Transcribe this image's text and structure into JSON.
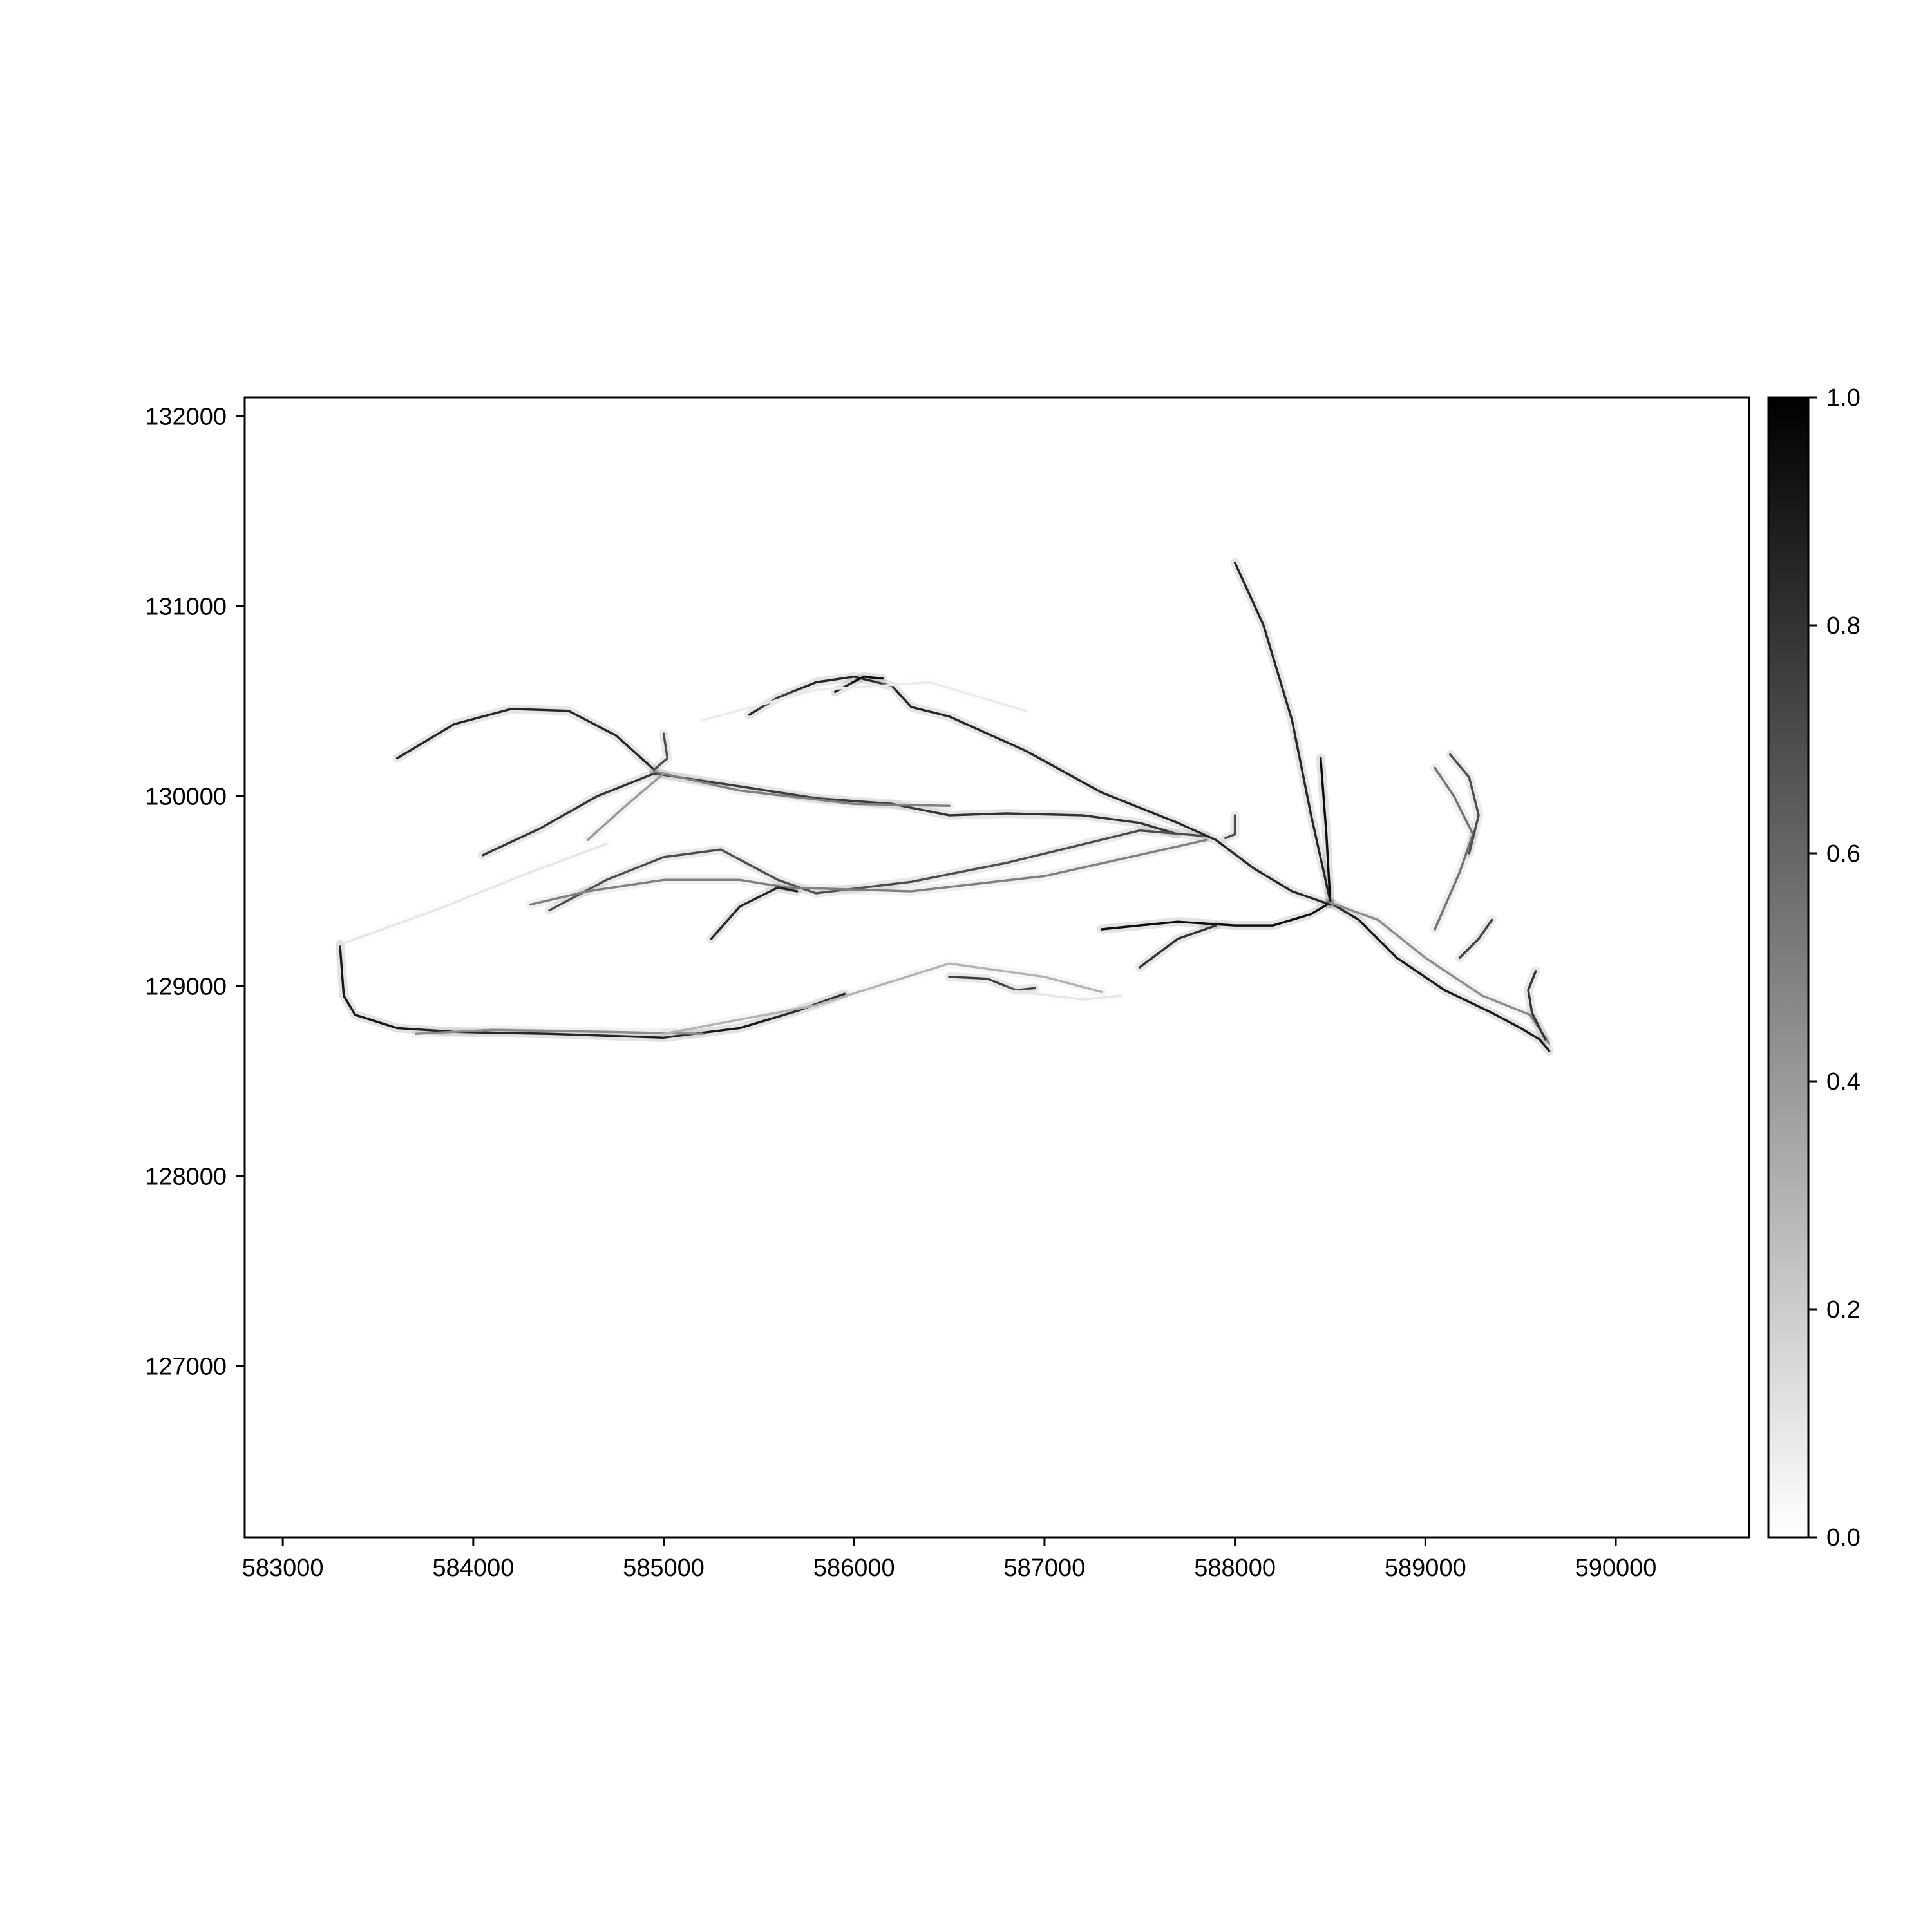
{
  "chart_data": {
    "type": "heatmap",
    "colormap": "gray_r",
    "title": "",
    "xlabel": "",
    "ylabel": "",
    "xlim": [
      582800,
      590700
    ],
    "ylim": [
      126100,
      132100
    ],
    "x_ticks": [
      583000,
      584000,
      585000,
      586000,
      587000,
      588000,
      589000,
      590000
    ],
    "x_tick_labels": [
      "583000",
      "584000",
      "585000",
      "586000",
      "587000",
      "588000",
      "589000",
      "590000"
    ],
    "y_ticks": [
      127000,
      128000,
      129000,
      130000,
      131000,
      132000
    ],
    "y_tick_labels": [
      "127000",
      "128000",
      "129000",
      "130000",
      "131000",
      "132000"
    ],
    "colorbar": {
      "range": [
        0.0,
        1.0
      ],
      "ticks": [
        0.0,
        0.2,
        0.4,
        0.6,
        0.8,
        1.0
      ],
      "tick_labels": [
        "0.0",
        "0.2",
        "0.4",
        "0.6",
        "0.8",
        "1.0"
      ]
    },
    "grid": false,
    "flow_paths": [
      {
        "intensity": 0.9,
        "points": [
          [
            583300,
            129220
          ],
          [
            583320,
            128950
          ],
          [
            583380,
            128850
          ],
          [
            583600,
            128780
          ],
          [
            583900,
            128760
          ],
          [
            584400,
            128750
          ],
          [
            585000,
            128730
          ],
          [
            585400,
            128780
          ],
          [
            585700,
            128870
          ],
          [
            585950,
            128960
          ]
        ]
      },
      {
        "intensity": 0.45,
        "points": [
          [
            583700,
            128750
          ],
          [
            584100,
            128770
          ],
          [
            584700,
            128760
          ],
          [
            585200,
            128750
          ]
        ]
      },
      {
        "intensity": 0.85,
        "points": [
          [
            583600,
            130200
          ],
          [
            583900,
            130380
          ],
          [
            584200,
            130460
          ],
          [
            584500,
            130450
          ],
          [
            584750,
            130320
          ],
          [
            584950,
            130140
          ]
        ]
      },
      {
        "intensity": 0.8,
        "points": [
          [
            584050,
            129690
          ],
          [
            584350,
            129830
          ],
          [
            584650,
            130000
          ],
          [
            584950,
            130120
          ],
          [
            585350,
            130060
          ],
          [
            585800,
            129990
          ],
          [
            586200,
            129960
          ],
          [
            586500,
            129900
          ],
          [
            586800,
            129910
          ],
          [
            587200,
            129900
          ],
          [
            587500,
            129860
          ],
          [
            587700,
            129800
          ]
        ]
      },
      {
        "intensity": 0.5,
        "points": [
          [
            584950,
            130130
          ],
          [
            585400,
            130030
          ],
          [
            586000,
            129960
          ],
          [
            586500,
            129950
          ]
        ]
      },
      {
        "intensity": 0.4,
        "points": [
          [
            584600,
            129770
          ],
          [
            584800,
            129950
          ],
          [
            585000,
            130120
          ]
        ]
      },
      {
        "intensity": 0.7,
        "points": [
          [
            584400,
            129400
          ],
          [
            584700,
            129560
          ],
          [
            585000,
            129680
          ],
          [
            585300,
            129720
          ],
          [
            585600,
            129560
          ],
          [
            585800,
            129490
          ],
          [
            586300,
            129550
          ],
          [
            586800,
            129650
          ],
          [
            587500,
            129820
          ],
          [
            587850,
            129790
          ]
        ]
      },
      {
        "intensity": 0.5,
        "points": [
          [
            584300,
            129430
          ],
          [
            584600,
            129500
          ],
          [
            585000,
            129560
          ],
          [
            585400,
            129560
          ],
          [
            585650,
            129520
          ],
          [
            586300,
            129500
          ],
          [
            587000,
            129580
          ],
          [
            587850,
            129770
          ]
        ]
      },
      {
        "intensity": 0.85,
        "points": [
          [
            585250,
            129250
          ],
          [
            585400,
            129420
          ],
          [
            585600,
            129520
          ],
          [
            585700,
            129500
          ]
        ]
      },
      {
        "intensity": 0.85,
        "points": [
          [
            585450,
            130430
          ],
          [
            585600,
            130520
          ],
          [
            585800,
            130600
          ],
          [
            586000,
            130630
          ],
          [
            586200,
            130580
          ],
          [
            586300,
            130470
          ],
          [
            586500,
            130420
          ],
          [
            586900,
            130240
          ],
          [
            587300,
            130020
          ],
          [
            587700,
            129860
          ],
          [
            587900,
            129770
          ],
          [
            588100,
            129620
          ],
          [
            588300,
            129500
          ],
          [
            588500,
            129430
          ]
        ]
      },
      {
        "intensity": 0.95,
        "points": [
          [
            585900,
            130550
          ],
          [
            586050,
            130630
          ],
          [
            586150,
            130620
          ]
        ]
      },
      {
        "intensity": 0.85,
        "points": [
          [
            588000,
            131230
          ],
          [
            588150,
            130900
          ],
          [
            588300,
            130400
          ],
          [
            588400,
            129900
          ],
          [
            588500,
            129450
          ]
        ]
      },
      {
        "intensity": 0.95,
        "points": [
          [
            588450,
            130200
          ],
          [
            588480,
            129800
          ],
          [
            588500,
            129450
          ]
        ]
      },
      {
        "intensity": 0.7,
        "points": [
          [
            588000,
            129900
          ],
          [
            588000,
            129800
          ],
          [
            587950,
            129780
          ]
        ]
      },
      {
        "intensity": 0.95,
        "points": [
          [
            587300,
            129300
          ],
          [
            587700,
            129340
          ],
          [
            588000,
            129320
          ],
          [
            588200,
            129320
          ],
          [
            588400,
            129380
          ],
          [
            588500,
            129440
          ]
        ]
      },
      {
        "intensity": 0.8,
        "points": [
          [
            587500,
            129100
          ],
          [
            587700,
            129250
          ],
          [
            587900,
            129320
          ]
        ]
      },
      {
        "intensity": 0.9,
        "points": [
          [
            588500,
            129440
          ],
          [
            588650,
            129350
          ],
          [
            588850,
            129150
          ],
          [
            589100,
            128980
          ],
          [
            589350,
            128860
          ],
          [
            589500,
            128780
          ],
          [
            589600,
            128720
          ],
          [
            589650,
            128660
          ]
        ]
      },
      {
        "intensity": 0.45,
        "points": [
          [
            588500,
            129440
          ],
          [
            588750,
            129350
          ],
          [
            589000,
            129150
          ],
          [
            589300,
            128950
          ],
          [
            589550,
            128850
          ],
          [
            589650,
            128700
          ]
        ]
      },
      {
        "intensity": 0.55,
        "points": [
          [
            589050,
            130150
          ],
          [
            589150,
            130000
          ],
          [
            589250,
            129800
          ],
          [
            589180,
            129600
          ],
          [
            589050,
            129300
          ]
        ]
      },
      {
        "intensity": 0.7,
        "points": [
          [
            589130,
            130220
          ],
          [
            589230,
            130100
          ],
          [
            589280,
            129900
          ],
          [
            589230,
            129700
          ]
        ]
      },
      {
        "intensity": 0.75,
        "points": [
          [
            589350,
            129350
          ],
          [
            589280,
            129250
          ],
          [
            589180,
            129150
          ]
        ]
      },
      {
        "intensity": 0.8,
        "points": [
          [
            589580,
            129080
          ],
          [
            589540,
            128980
          ],
          [
            589560,
            128860
          ],
          [
            589630,
            128720
          ]
        ]
      },
      {
        "intensity": 0.3,
        "points": [
          [
            585000,
            128750
          ],
          [
            585800,
            128900
          ],
          [
            586500,
            129120
          ],
          [
            587000,
            129050
          ],
          [
            587300,
            128970
          ]
        ]
      },
      {
        "intensity": 0.75,
        "points": [
          [
            586500,
            129050
          ],
          [
            586700,
            129040
          ],
          [
            586850,
            128980
          ],
          [
            586950,
            128990
          ]
        ]
      },
      {
        "intensity": 0.7,
        "points": [
          [
            585000,
            130330
          ],
          [
            585020,
            130200
          ],
          [
            584950,
            130140
          ]
        ]
      },
      {
        "intensity": 0.1,
        "points": [
          [
            583300,
            129220
          ],
          [
            583800,
            129400
          ],
          [
            584300,
            129600
          ],
          [
            584700,
            129750
          ]
        ]
      },
      {
        "intensity": 0.08,
        "points": [
          [
            585200,
            130400
          ],
          [
            585800,
            130560
          ],
          [
            586400,
            130600
          ],
          [
            586900,
            130450
          ]
        ]
      },
      {
        "intensity": 0.1,
        "points": [
          [
            586800,
            128980
          ],
          [
            587200,
            128930
          ],
          [
            587400,
            128950
          ]
        ]
      }
    ]
  }
}
